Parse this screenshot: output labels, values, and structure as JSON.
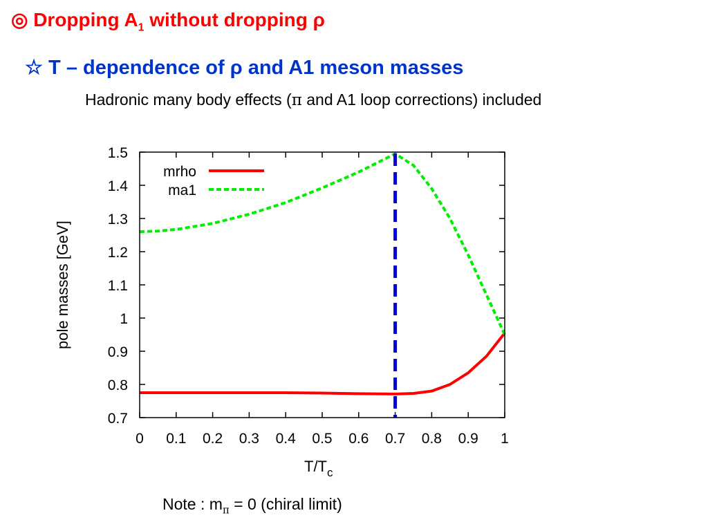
{
  "header": {
    "title_prefix": "◎ Dropping  A",
    "title_sub": "1",
    "title_suffix": "  without dropping ρ",
    "subtitle": "☆ T – dependence of ρ and  A1 meson masses",
    "caption_before": "Hadronic  many body effects (",
    "caption_pi": "π",
    "caption_after": " and A1 loop corrections) included"
  },
  "footer": {
    "note_before": "Note : m",
    "note_sub": "π",
    "note_after": " = 0 (chiral limit)"
  },
  "colors": {
    "title": "#ff0000",
    "subtitle": "#0033cc",
    "mrho": "#ff0000",
    "ma1": "#00ee00",
    "vline": "#0000dd"
  },
  "chart_data": {
    "type": "line",
    "xlabel_main": "T/T",
    "xlabel_sub": "c",
    "ylabel": "pole masses [GeV]",
    "xlim": [
      0,
      1
    ],
    "ylim": [
      0.7,
      1.5
    ],
    "xticks": [
      0,
      0.1,
      0.2,
      0.3,
      0.4,
      0.5,
      0.6,
      0.7,
      0.8,
      0.9,
      1
    ],
    "xtick_labels": [
      "0",
      "0.1",
      "0.2",
      "0.3",
      "0.4",
      "0.5",
      "0.6",
      "0.7",
      "0.8",
      "0.9",
      "1"
    ],
    "yticks": [
      0.7,
      0.8,
      0.9,
      1.0,
      1.1,
      1.2,
      1.3,
      1.4,
      1.5
    ],
    "ytick_labels": [
      "0.7",
      "0.8",
      "0.9",
      "1",
      "1.1",
      "1.2",
      "1.3",
      "1.4",
      "1.5"
    ],
    "legend_position": "top-left",
    "series": [
      {
        "name": "mrho",
        "color": "#ff0000",
        "style": "solid",
        "x": [
          0,
          0.1,
          0.2,
          0.3,
          0.4,
          0.5,
          0.6,
          0.7,
          0.75,
          0.8,
          0.85,
          0.9,
          0.95,
          1.0
        ],
        "y": [
          0.775,
          0.775,
          0.775,
          0.775,
          0.775,
          0.774,
          0.772,
          0.771,
          0.773,
          0.78,
          0.8,
          0.835,
          0.885,
          0.955
        ]
      },
      {
        "name": "ma1",
        "color": "#00ee00",
        "style": "dashed",
        "x": [
          0,
          0.05,
          0.1,
          0.2,
          0.3,
          0.4,
          0.5,
          0.6,
          0.7,
          0.75,
          0.8,
          0.85,
          0.9,
          0.95,
          1.0
        ],
        "y": [
          1.26,
          1.262,
          1.267,
          1.285,
          1.313,
          1.348,
          1.392,
          1.44,
          1.495,
          1.46,
          1.39,
          1.3,
          1.19,
          1.07,
          0.95
        ]
      }
    ],
    "vertical_line": {
      "x": 0.7,
      "color": "#0000dd",
      "style": "dashed"
    }
  }
}
